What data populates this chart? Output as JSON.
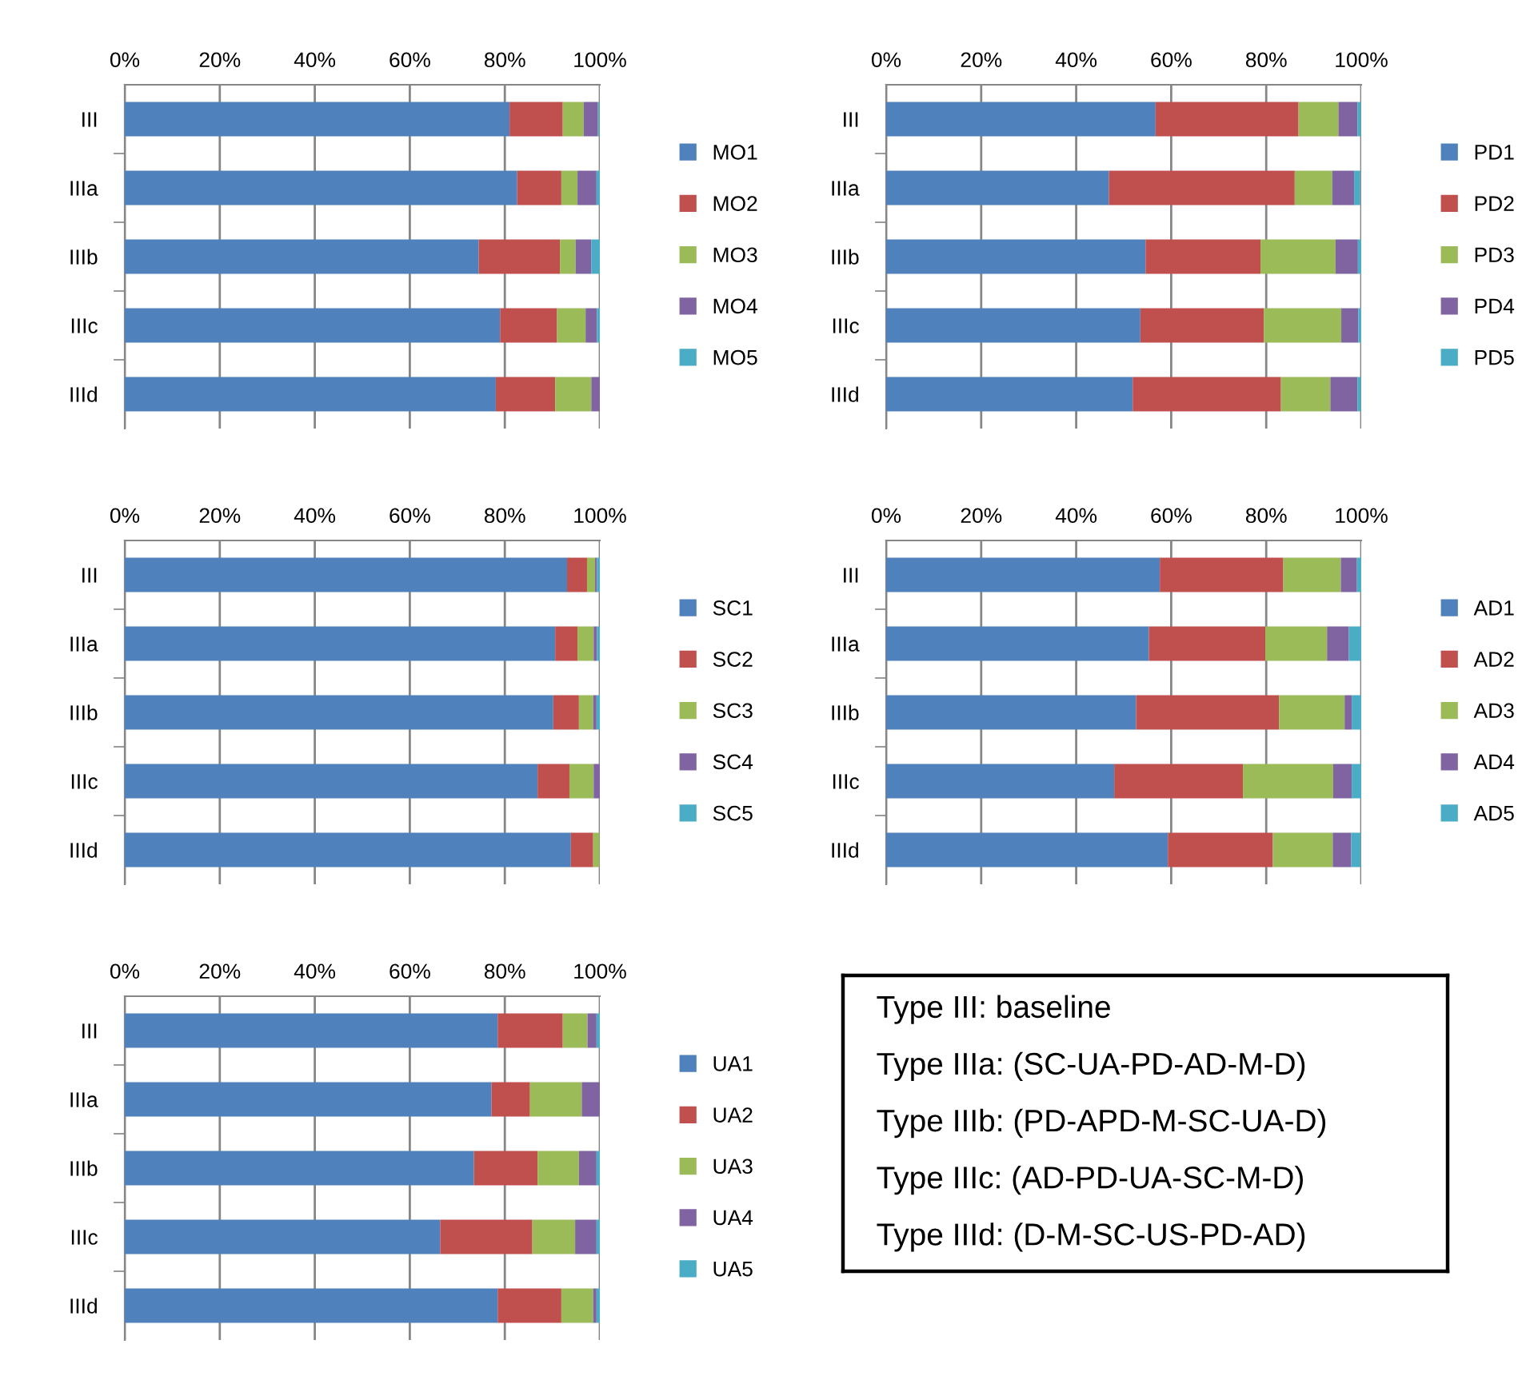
{
  "chart_data": [
    {
      "type": "bar",
      "orientation": "horizontal",
      "stacked": true,
      "categories": [
        "III",
        "IIIa",
        "IIIb",
        "IIIc",
        "IIId"
      ],
      "xlim": [
        0,
        100
      ],
      "xticks": [
        {
          "value": 0,
          "label": "0%"
        },
        {
          "value": 20,
          "label": "20%"
        },
        {
          "value": 40,
          "label": "40%"
        },
        {
          "value": 60,
          "label": "60%"
        },
        {
          "value": 80,
          "label": "80%"
        },
        {
          "value": 100,
          "label": "100%"
        }
      ],
      "grid": "x",
      "legend": "right",
      "series": [
        {
          "name": "MO1",
          "color": "#4f81bd",
          "values": [
            81.0,
            82.6,
            74.5,
            79.0,
            78.1
          ]
        },
        {
          "name": "MO2",
          "color": "#c0504d",
          "values": [
            11.2,
            9.3,
            17.1,
            12.0,
            12.5
          ]
        },
        {
          "name": "MO3",
          "color": "#9bbb59",
          "values": [
            4.4,
            3.4,
            3.3,
            6.0,
            7.6
          ]
        },
        {
          "name": "MO4",
          "color": "#8064a2",
          "values": [
            3.0,
            4.0,
            3.3,
            2.4,
            1.8
          ]
        },
        {
          "name": "MO5",
          "color": "#4bacc6",
          "values": [
            0.3,
            0.7,
            1.8,
            0.6,
            0
          ]
        }
      ]
    },
    {
      "type": "bar",
      "orientation": "horizontal",
      "stacked": true,
      "categories": [
        "III",
        "IIIa",
        "IIIb",
        "IIIc",
        "IIId"
      ],
      "xlim": [
        0,
        100
      ],
      "xticks": [
        {
          "value": 0,
          "label": "0%"
        },
        {
          "value": 20,
          "label": "20%"
        },
        {
          "value": 40,
          "label": "40%"
        },
        {
          "value": 60,
          "label": "60%"
        },
        {
          "value": 80,
          "label": "80%"
        },
        {
          "value": 100,
          "label": "100%"
        }
      ],
      "grid": "x",
      "legend": "right",
      "series": [
        {
          "name": "PD1",
          "color": "#4f81bd",
          "values": [
            56.7,
            46.9,
            54.6,
            53.5,
            51.9
          ]
        },
        {
          "name": "PD2",
          "color": "#c0504d",
          "values": [
            30.1,
            39.1,
            24.2,
            26.0,
            31.2
          ]
        },
        {
          "name": "PD3",
          "color": "#9bbb59",
          "values": [
            8.4,
            7.9,
            15.8,
            16.3,
            10.4
          ]
        },
        {
          "name": "PD4",
          "color": "#8064a2",
          "values": [
            4.0,
            4.6,
            4.7,
            3.6,
            5.7
          ]
        },
        {
          "name": "PD5",
          "color": "#4bacc6",
          "values": [
            0.7,
            1.3,
            0.7,
            0.6,
            0.7
          ]
        }
      ]
    },
    {
      "type": "bar",
      "orientation": "horizontal",
      "stacked": true,
      "categories": [
        "III",
        "IIIa",
        "IIIb",
        "IIIc",
        "IIId"
      ],
      "xlim": [
        0,
        100
      ],
      "xticks": [
        {
          "value": 0,
          "label": "0%"
        },
        {
          "value": 20,
          "label": "20%"
        },
        {
          "value": 40,
          "label": "40%"
        },
        {
          "value": 60,
          "label": "60%"
        },
        {
          "value": 80,
          "label": "80%"
        },
        {
          "value": 100,
          "label": "100%"
        }
      ],
      "grid": "x",
      "legend": "right",
      "series": [
        {
          "name": "SC1",
          "color": "#4f81bd",
          "values": [
            93.1,
            90.6,
            90.2,
            86.9,
            93.9
          ]
        },
        {
          "name": "SC2",
          "color": "#c0504d",
          "values": [
            4.2,
            4.7,
            5.4,
            6.7,
            4.7
          ]
        },
        {
          "name": "SC3",
          "color": "#9bbb59",
          "values": [
            1.7,
            3.4,
            3.0,
            5.1,
            1.3
          ]
        },
        {
          "name": "SC4",
          "color": "#8064a2",
          "values": [
            0.4,
            0.7,
            0.7,
            1.3,
            0
          ]
        },
        {
          "name": "SC5",
          "color": "#4bacc6",
          "values": [
            0.6,
            0.6,
            0.7,
            0,
            0
          ]
        }
      ]
    },
    {
      "type": "bar",
      "orientation": "horizontal",
      "stacked": true,
      "categories": [
        "III",
        "IIIa",
        "IIIb",
        "IIIc",
        "IIId"
      ],
      "xlim": [
        0,
        100
      ],
      "xticks": [
        {
          "value": 0,
          "label": "0%"
        },
        {
          "value": 20,
          "label": "20%"
        },
        {
          "value": 40,
          "label": "40%"
        },
        {
          "value": 60,
          "label": "60%"
        },
        {
          "value": 80,
          "label": "80%"
        },
        {
          "value": 100,
          "label": "100%"
        }
      ],
      "grid": "x",
      "legend": "right",
      "series": [
        {
          "name": "AD1",
          "color": "#4f81bd",
          "values": [
            57.6,
            55.3,
            52.6,
            48.0,
            59.3
          ]
        },
        {
          "name": "AD2",
          "color": "#c0504d",
          "values": [
            26.0,
            24.5,
            30.1,
            27.1,
            22.1
          ]
        },
        {
          "name": "AD3",
          "color": "#9bbb59",
          "values": [
            12.1,
            13.0,
            13.8,
            19.0,
            12.6
          ]
        },
        {
          "name": "AD4",
          "color": "#8064a2",
          "values": [
            3.4,
            4.6,
            1.5,
            3.9,
            3.9
          ]
        },
        {
          "name": "AD5",
          "color": "#4bacc6",
          "values": [
            0.9,
            2.6,
            2.0,
            2.0,
            2.0
          ]
        }
      ]
    },
    {
      "type": "bar",
      "orientation": "horizontal",
      "stacked": true,
      "categories": [
        "III",
        "IIIa",
        "IIIb",
        "IIIc",
        "IIId"
      ],
      "xlim": [
        0,
        100
      ],
      "xticks": [
        {
          "value": 0,
          "label": "0%"
        },
        {
          "value": 20,
          "label": "20%"
        },
        {
          "value": 40,
          "label": "40%"
        },
        {
          "value": 60,
          "label": "60%"
        },
        {
          "value": 80,
          "label": "80%"
        },
        {
          "value": 100,
          "label": "100%"
        }
      ],
      "grid": "x",
      "legend": "right",
      "series": [
        {
          "name": "UA1",
          "color": "#4f81bd",
          "values": [
            78.5,
            77.2,
            73.5,
            66.4,
            78.5
          ]
        },
        {
          "name": "UA2",
          "color": "#c0504d",
          "values": [
            13.7,
            8.1,
            13.4,
            19.4,
            13.4
          ]
        },
        {
          "name": "UA3",
          "color": "#9bbb59",
          "values": [
            5.2,
            10.9,
            8.7,
            9.0,
            6.7
          ]
        },
        {
          "name": "UA4",
          "color": "#8064a2",
          "values": [
            1.9,
            3.8,
            3.7,
            4.5,
            0.7
          ]
        },
        {
          "name": "UA5",
          "color": "#4bacc6",
          "values": [
            0.7,
            0,
            0.7,
            0.7,
            0.7
          ]
        }
      ]
    },
    {
      "type": "other",
      "annotations": [
        "Type III: baseline",
        "Type IIIa: (SC-UA-PD-AD-M-D)",
        "Type IIIb: (PD-APD-M-SC-UA-D)",
        "Type IIIc: (AD-PD-UA-SC-M-D)",
        "Type IIId: (D-M-SC-US-PD-AD)"
      ]
    }
  ]
}
